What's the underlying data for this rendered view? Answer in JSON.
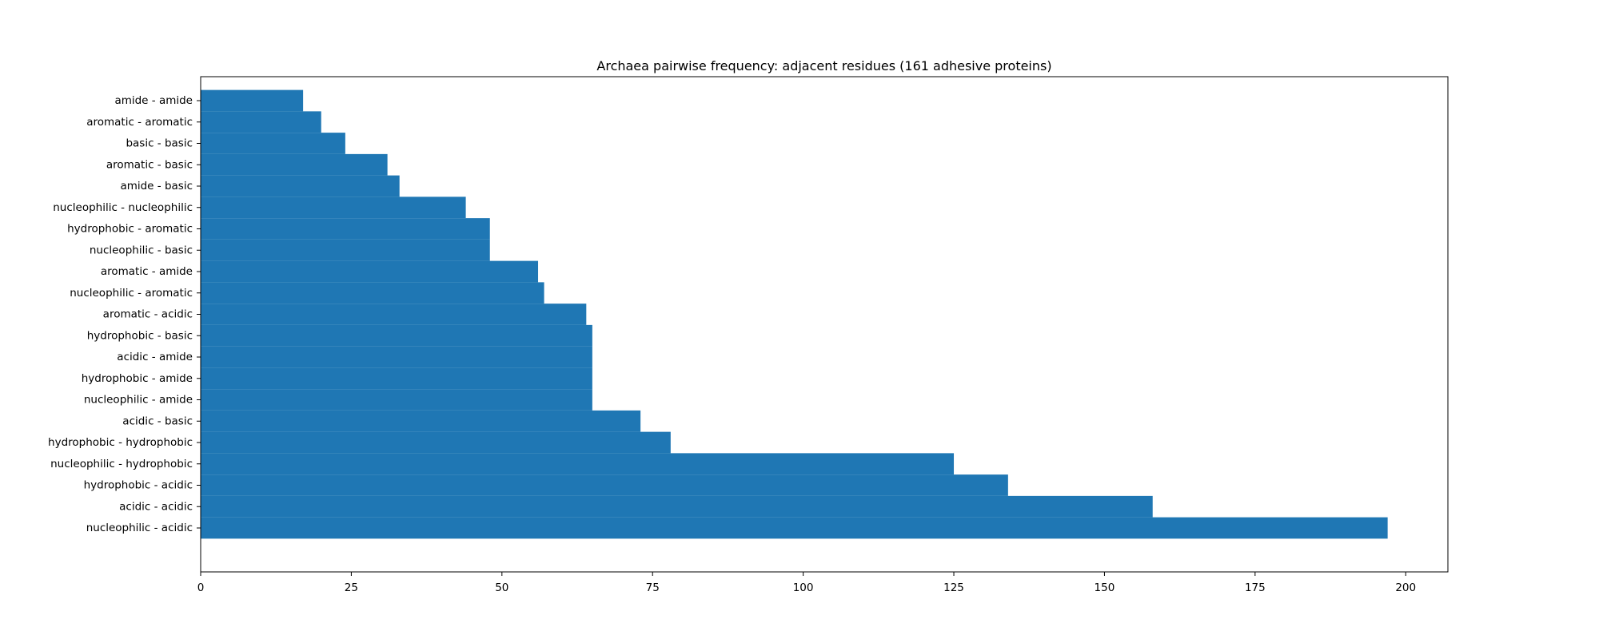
{
  "chart_data": {
    "type": "bar",
    "orientation": "horizontal",
    "title": "Archaea pairwise frequency: adjacent residues (161 adhesive proteins)",
    "xlabel": "",
    "ylabel": "",
    "categories": [
      "amide - amide",
      "aromatic - aromatic",
      "basic - basic",
      "aromatic - basic",
      "amide - basic",
      "nucleophilic - nucleophilic",
      "hydrophobic - aromatic",
      "nucleophilic - basic",
      "aromatic - amide",
      "nucleophilic - aromatic",
      "aromatic - acidic",
      "hydrophobic - basic",
      "acidic - amide",
      "hydrophobic - amide",
      "nucleophilic - amide",
      "acidic - basic",
      "hydrophobic - hydrophobic",
      "nucleophilic - hydrophobic",
      "hydrophobic - acidic",
      "acidic - acidic",
      "nucleophilic - acidic"
    ],
    "values": [
      17,
      20,
      24,
      31,
      33,
      44,
      48,
      48,
      56,
      57,
      64,
      65,
      65,
      65,
      65,
      73,
      78,
      125,
      134,
      158,
      197
    ],
    "xlim": [
      0,
      207
    ],
    "xticks": [
      0,
      25,
      50,
      75,
      100,
      125,
      150,
      175,
      200
    ],
    "bar_color": "#1f77b4",
    "grid": false,
    "legend": "none"
  }
}
